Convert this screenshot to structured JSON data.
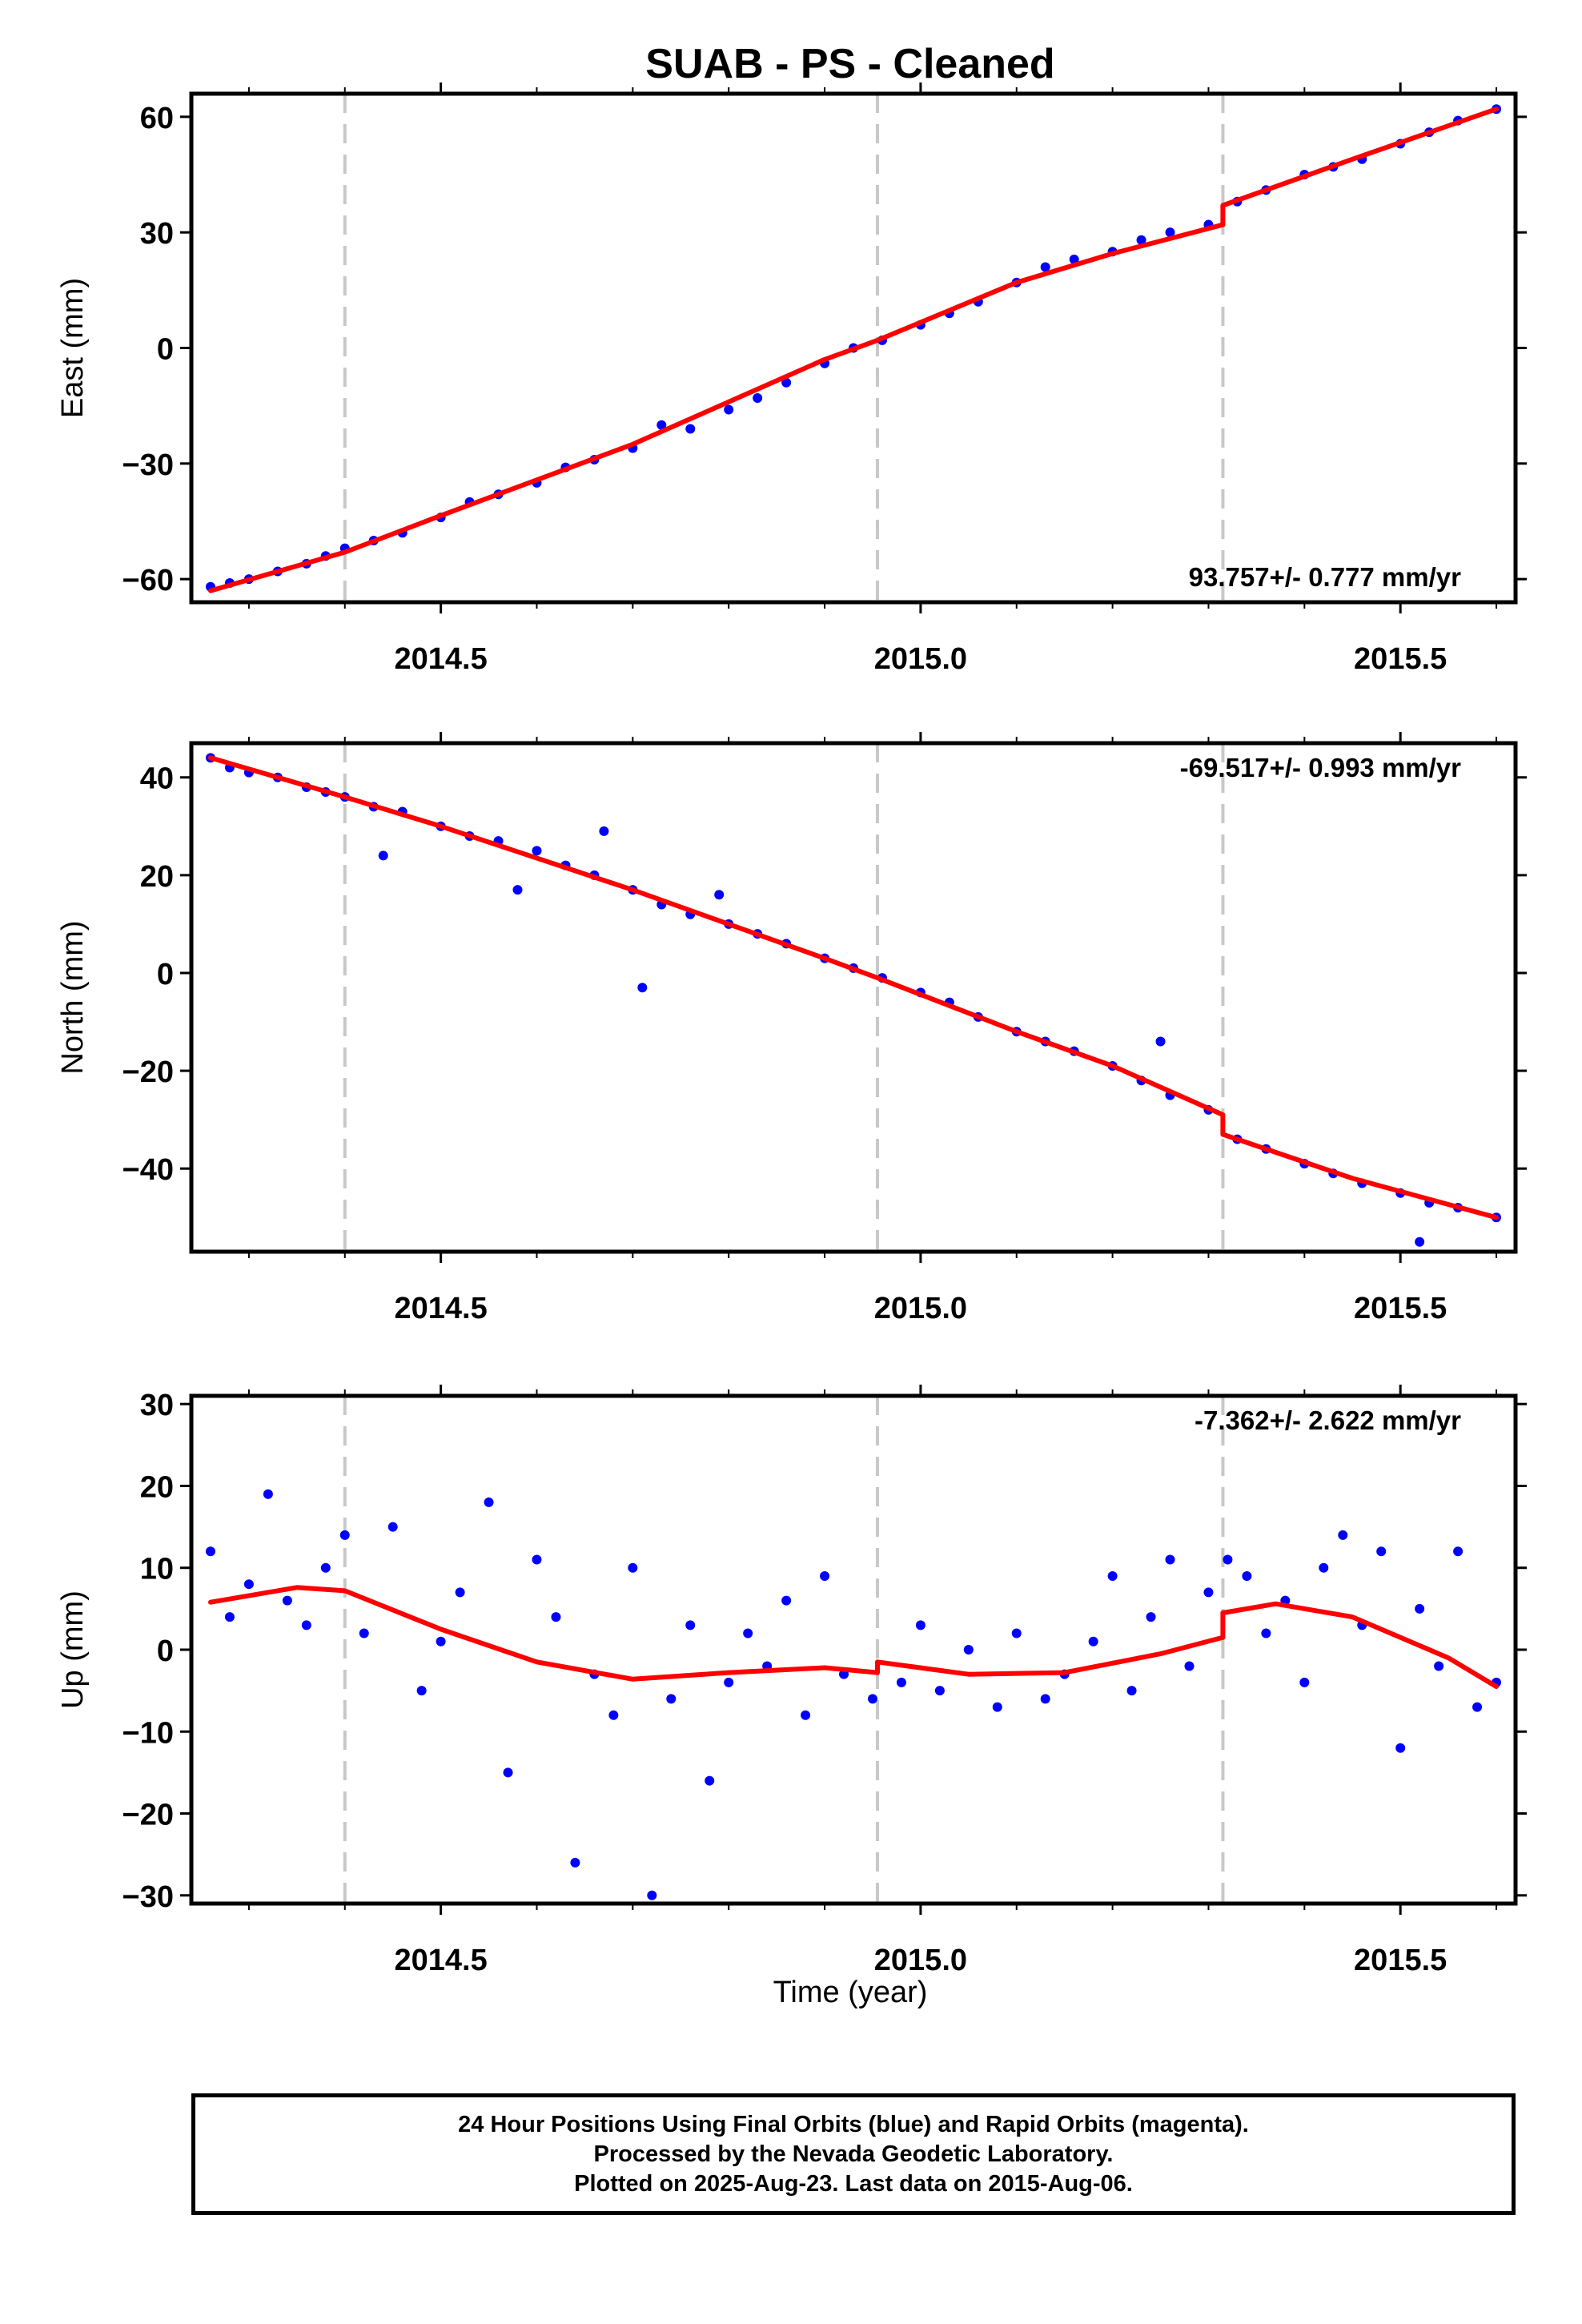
{
  "chart_data": {
    "type": "scatter",
    "title": "SUAB  - PS - Cleaned",
    "xlabel": "Time (year)",
    "xlim": [
      2014.24,
      2015.62
    ],
    "x_ticks": [
      2014.5,
      2015.0,
      2015.5
    ],
    "x_tick_labels": [
      "2014.5",
      "2015.0",
      "2015.5"
    ],
    "event_lines_x": [
      2014.4,
      2014.955,
      2015.315
    ],
    "colors": {
      "points": "#0000ff",
      "model": "#ff0000",
      "event_lines": "#c8c8c8"
    },
    "panels": [
      {
        "name": "east",
        "ylabel": "East (mm)",
        "ylim": [
          -66,
          66
        ],
        "y_ticks": [
          60,
          30,
          0,
          -30,
          -60
        ],
        "y_tick_labels": [
          "60",
          "30",
          "0",
          "−30",
          "−60"
        ],
        "rate_label": "93.757+/- 0.777 mm/yr",
        "rate_position": "bottom-right",
        "model": [
          [
            2014.26,
            -63
          ],
          [
            2014.4,
            -53
          ],
          [
            2014.5,
            -43.5
          ],
          [
            2014.7,
            -25
          ],
          [
            2014.9,
            -3
          ],
          [
            2014.955,
            2
          ],
          [
            2015.1,
            17
          ],
          [
            2015.2,
            24.5
          ],
          [
            2015.315,
            32
          ],
          [
            2015.315,
            37
          ],
          [
            2015.45,
            49
          ],
          [
            2015.6,
            62
          ]
        ],
        "points": [
          [
            2014.26,
            -62
          ],
          [
            2014.28,
            -61
          ],
          [
            2014.3,
            -60
          ],
          [
            2014.33,
            -58
          ],
          [
            2014.36,
            -56
          ],
          [
            2014.38,
            -54
          ],
          [
            2014.4,
            -52
          ],
          [
            2014.43,
            -50
          ],
          [
            2014.46,
            -48
          ],
          [
            2014.5,
            -44
          ],
          [
            2014.53,
            -40
          ],
          [
            2014.56,
            -38
          ],
          [
            2014.6,
            -35
          ],
          [
            2014.63,
            -31
          ],
          [
            2014.66,
            -29
          ],
          [
            2014.7,
            -26
          ],
          [
            2014.73,
            -20
          ],
          [
            2014.76,
            -21
          ],
          [
            2014.8,
            -16
          ],
          [
            2014.83,
            -13
          ],
          [
            2014.86,
            -9
          ],
          [
            2014.9,
            -4
          ],
          [
            2014.93,
            0
          ],
          [
            2014.96,
            2
          ],
          [
            2015.0,
            6
          ],
          [
            2015.03,
            9
          ],
          [
            2015.06,
            12
          ],
          [
            2015.1,
            17
          ],
          [
            2015.13,
            21
          ],
          [
            2015.16,
            23
          ],
          [
            2015.2,
            25
          ],
          [
            2015.23,
            28
          ],
          [
            2015.26,
            30
          ],
          [
            2015.3,
            32
          ],
          [
            2015.33,
            38
          ],
          [
            2015.36,
            41
          ],
          [
            2015.4,
            45
          ],
          [
            2015.43,
            47
          ],
          [
            2015.46,
            49
          ],
          [
            2015.5,
            53
          ],
          [
            2015.53,
            56
          ],
          [
            2015.56,
            59
          ],
          [
            2015.6,
            62
          ]
        ]
      },
      {
        "name": "north",
        "ylabel": "North (mm)",
        "ylim": [
          -57,
          47
        ],
        "y_ticks": [
          40,
          20,
          0,
          -20,
          -40
        ],
        "y_tick_labels": [
          "40",
          "20",
          "0",
          "−20",
          "−40"
        ],
        "rate_label": "-69.517+/- 0.993 mm/yr",
        "rate_position": "top-right",
        "model": [
          [
            2014.26,
            44
          ],
          [
            2014.4,
            36
          ],
          [
            2014.5,
            30
          ],
          [
            2014.7,
            17
          ],
          [
            2014.9,
            3
          ],
          [
            2014.955,
            -1
          ],
          [
            2015.1,
            -12
          ],
          [
            2015.2,
            -19
          ],
          [
            2015.315,
            -29
          ],
          [
            2015.315,
            -33
          ],
          [
            2015.45,
            -42
          ],
          [
            2015.6,
            -50
          ]
        ],
        "points": [
          [
            2014.26,
            44
          ],
          [
            2014.28,
            42
          ],
          [
            2014.3,
            41
          ],
          [
            2014.33,
            40
          ],
          [
            2014.36,
            38
          ],
          [
            2014.38,
            37
          ],
          [
            2014.4,
            36
          ],
          [
            2014.43,
            34
          ],
          [
            2014.46,
            33
          ],
          [
            2014.5,
            30
          ],
          [
            2014.53,
            28
          ],
          [
            2014.56,
            27
          ],
          [
            2014.6,
            25
          ],
          [
            2014.63,
            22
          ],
          [
            2014.66,
            20
          ],
          [
            2014.7,
            17
          ],
          [
            2014.73,
            14
          ],
          [
            2014.76,
            12
          ],
          [
            2014.8,
            10
          ],
          [
            2014.83,
            8
          ],
          [
            2014.86,
            6
          ],
          [
            2014.9,
            3
          ],
          [
            2014.93,
            1
          ],
          [
            2014.96,
            -1
          ],
          [
            2015.0,
            -4
          ],
          [
            2015.03,
            -6
          ],
          [
            2015.06,
            -9
          ],
          [
            2015.1,
            -12
          ],
          [
            2015.13,
            -14
          ],
          [
            2015.16,
            -16
          ],
          [
            2015.2,
            -19
          ],
          [
            2015.23,
            -22
          ],
          [
            2015.26,
            -25
          ],
          [
            2015.3,
            -28
          ],
          [
            2015.33,
            -34
          ],
          [
            2015.36,
            -36
          ],
          [
            2015.4,
            -39
          ],
          [
            2015.43,
            -41
          ],
          [
            2015.46,
            -43
          ],
          [
            2015.5,
            -45
          ],
          [
            2015.53,
            -47
          ],
          [
            2015.56,
            -48
          ],
          [
            2015.6,
            -50
          ],
          [
            2014.44,
            24
          ],
          [
            2014.58,
            17
          ],
          [
            2014.67,
            29
          ],
          [
            2014.71,
            -3
          ],
          [
            2014.79,
            16
          ],
          [
            2015.25,
            -14
          ],
          [
            2015.52,
            -55
          ]
        ]
      },
      {
        "name": "up",
        "ylabel": "Up (mm)",
        "ylim": [
          -31,
          31
        ],
        "y_ticks": [
          30,
          20,
          10,
          0,
          -10,
          -20,
          -30
        ],
        "y_tick_labels": [
          "30",
          "20",
          "10",
          "0",
          "−10",
          "−20",
          "−30"
        ],
        "rate_label": "-7.362+/- 2.622 mm/yr",
        "rate_position": "top-right",
        "model": [
          [
            2014.26,
            5.8
          ],
          [
            2014.35,
            7.6
          ],
          [
            2014.4,
            7.2
          ],
          [
            2014.5,
            2.5
          ],
          [
            2014.6,
            -1.5
          ],
          [
            2014.7,
            -3.6
          ],
          [
            2014.8,
            -2.8
          ],
          [
            2014.9,
            -2.2
          ],
          [
            2014.955,
            -2.8
          ],
          [
            2014.955,
            -1.5
          ],
          [
            2015.05,
            -3.0
          ],
          [
            2015.15,
            -2.8
          ],
          [
            2015.25,
            -0.5
          ],
          [
            2015.315,
            1.5
          ],
          [
            2015.315,
            4.5
          ],
          [
            2015.37,
            5.6
          ],
          [
            2015.45,
            4.0
          ],
          [
            2015.55,
            -1.0
          ],
          [
            2015.6,
            -4.5
          ]
        ],
        "points": [
          [
            2014.26,
            12
          ],
          [
            2014.28,
            4
          ],
          [
            2014.3,
            8
          ],
          [
            2014.32,
            19
          ],
          [
            2014.34,
            6
          ],
          [
            2014.36,
            3
          ],
          [
            2014.38,
            10
          ],
          [
            2014.4,
            14
          ],
          [
            2014.42,
            2
          ],
          [
            2014.45,
            15
          ],
          [
            2014.48,
            -5
          ],
          [
            2014.5,
            1
          ],
          [
            2014.52,
            7
          ],
          [
            2014.55,
            18
          ],
          [
            2014.57,
            -15
          ],
          [
            2014.6,
            11
          ],
          [
            2014.62,
            4
          ],
          [
            2014.64,
            -26
          ],
          [
            2014.66,
            -3
          ],
          [
            2014.68,
            -8
          ],
          [
            2014.7,
            10
          ],
          [
            2014.72,
            -30
          ],
          [
            2014.74,
            -6
          ],
          [
            2014.76,
            3
          ],
          [
            2014.78,
            -16
          ],
          [
            2014.8,
            -4
          ],
          [
            2014.82,
            2
          ],
          [
            2014.84,
            -2
          ],
          [
            2014.86,
            6
          ],
          [
            2014.88,
            -8
          ],
          [
            2014.9,
            9
          ],
          [
            2014.92,
            -3
          ],
          [
            2014.95,
            -6
          ],
          [
            2014.98,
            -4
          ],
          [
            2015.0,
            3
          ],
          [
            2015.02,
            -5
          ],
          [
            2015.05,
            0
          ],
          [
            2015.08,
            -7
          ],
          [
            2015.1,
            2
          ],
          [
            2015.13,
            -6
          ],
          [
            2015.15,
            -3
          ],
          [
            2015.18,
            1
          ],
          [
            2015.2,
            9
          ],
          [
            2015.22,
            -5
          ],
          [
            2015.24,
            4
          ],
          [
            2015.26,
            11
          ],
          [
            2015.28,
            -2
          ],
          [
            2015.3,
            7
          ],
          [
            2015.32,
            11
          ],
          [
            2015.34,
            9
          ],
          [
            2015.36,
            2
          ],
          [
            2015.38,
            6
          ],
          [
            2015.4,
            -4
          ],
          [
            2015.42,
            10
          ],
          [
            2015.44,
            14
          ],
          [
            2015.46,
            3
          ],
          [
            2015.48,
            12
          ],
          [
            2015.5,
            -12
          ],
          [
            2015.52,
            5
          ],
          [
            2015.54,
            -2
          ],
          [
            2015.56,
            12
          ],
          [
            2015.58,
            -7
          ],
          [
            2015.6,
            -4
          ]
        ]
      }
    ],
    "footer_lines": [
      "24 Hour Positions Using Final Orbits (blue) and Rapid Orbits (magenta).",
      "Processed by the Nevada Geodetic Laboratory.",
      "Plotted on 2025-Aug-23. Last data on 2015-Aug-06."
    ]
  }
}
